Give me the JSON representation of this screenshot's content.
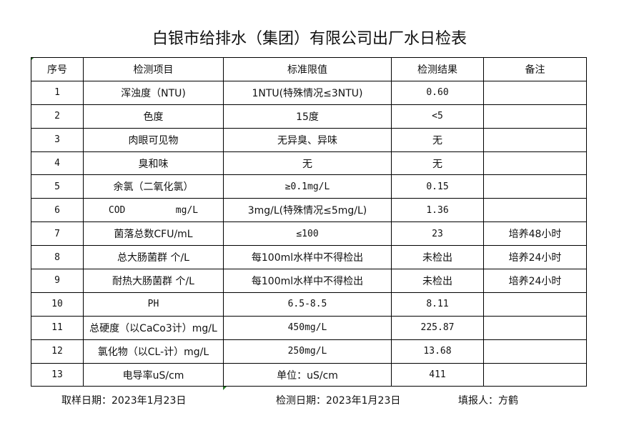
{
  "title": "白银市给排水（集团）有限公司出厂水日检表",
  "headers": [
    "序号",
    "检测项目",
    "标准限值",
    "检测结果",
    "备注"
  ],
  "rows": [
    [
      "1",
      "浑浊度（NTU)",
      "1NTU(特殊情况≤3NTU)",
      "0.60",
      ""
    ],
    [
      "2",
      "色度",
      "15度",
      "<5",
      ""
    ],
    [
      "3",
      "肉眼可见物",
      "无异臭、异味",
      "无",
      ""
    ],
    [
      "4",
      "臭和味",
      "无",
      "无",
      ""
    ],
    [
      "5",
      "余氯（二氧化氯）",
      "≥0.1mg/L",
      "0.15",
      ""
    ],
    [
      "6",
      "COD         mg/L",
      "3mg/L(特殊情况≤5mg/L)",
      "1.36",
      ""
    ],
    [
      "7",
      "菌落总数CFU/mL",
      "≤100",
      "23",
      "培养48小时"
    ],
    [
      "8",
      "总大肠菌群 个/L",
      "每100ml水样中不得检出",
      "未检出",
      "培养24小时"
    ],
    [
      "9",
      "耐热大肠菌群 个/L",
      "每100ml水样中不得检出",
      "未检出",
      "培养24小时"
    ],
    [
      "10",
      "PH",
      "6.5-8.5",
      "8.11",
      ""
    ],
    [
      "11",
      "总硬度（以CaCo3计）mg/L",
      "450mg/L",
      "225.87",
      ""
    ],
    [
      "12",
      "氯化物（以CL-计）mg/L",
      "250mg/L",
      "13.68",
      ""
    ],
    [
      "13",
      "电导率uS/cm",
      "单位：uS/cm",
      "411",
      ""
    ]
  ],
  "footer": {
    "sample_date": "取样日期：2023年1月23日",
    "test_date": "检测日期：2023年1月23日",
    "reporter": "填报人：方鹤"
  }
}
